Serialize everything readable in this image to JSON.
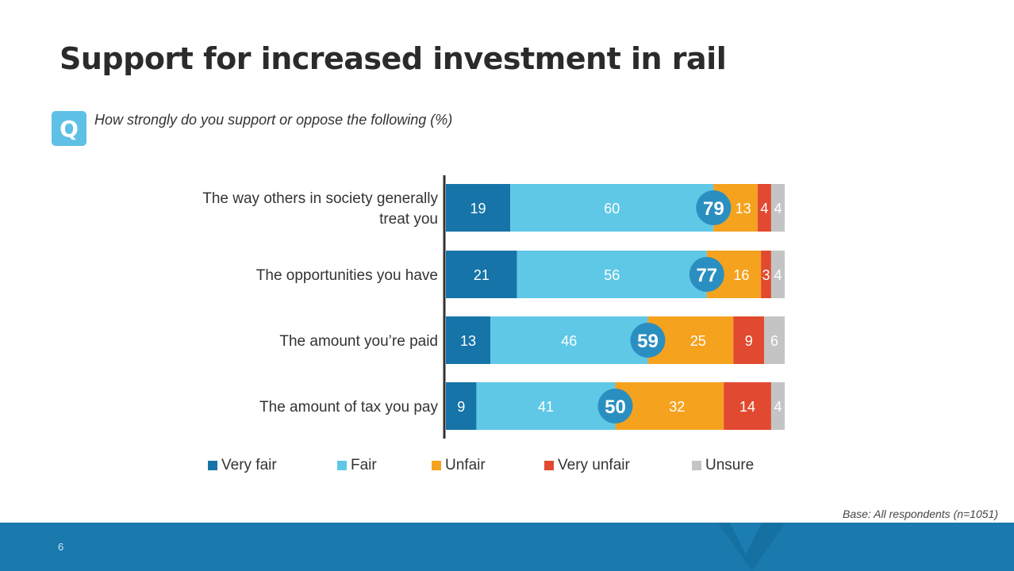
{
  "title": "Support for increased investment in rail",
  "question": "How strongly do you support or oppose the following (%)",
  "base_note": "Base: All respondents (n=1051)",
  "page_number": "6",
  "q_icon": {
    "name": "q-icon",
    "color": "#5fc0e6",
    "letter": "Q"
  },
  "chart_data": {
    "type": "bar",
    "orientation": "horizontal",
    "stacked": true,
    "categories": [
      "The way others in society generally treat you",
      "The opportunities you have",
      "The amount you’re paid",
      "The amount of tax you pay"
    ],
    "category_lines": [
      [
        "The way others in society generally",
        "treat you"
      ],
      [
        "The opportunities you have"
      ],
      [
        "The amount you’re paid"
      ],
      [
        "The amount of tax you pay"
      ]
    ],
    "series": [
      {
        "name": "Very fair",
        "color": "#1674a8",
        "values": [
          19,
          21,
          13,
          9
        ]
      },
      {
        "name": "Fair",
        "color": "#5fc8e6",
        "values": [
          60,
          56,
          46,
          41
        ]
      },
      {
        "name": "Unfair",
        "color": "#f5a21f",
        "values": [
          13,
          16,
          25,
          32
        ]
      },
      {
        "name": "Very unfair",
        "color": "#e14a30",
        "values": [
          4,
          3,
          9,
          14
        ]
      },
      {
        "name": "Unsure",
        "color": "#c4c4c4",
        "values": [
          4,
          4,
          6,
          4
        ]
      }
    ],
    "net_fair": {
      "values": [
        79,
        77,
        59,
        50
      ],
      "color": "#2a8fc0"
    },
    "legend_position": "bottom",
    "grid": false
  }
}
